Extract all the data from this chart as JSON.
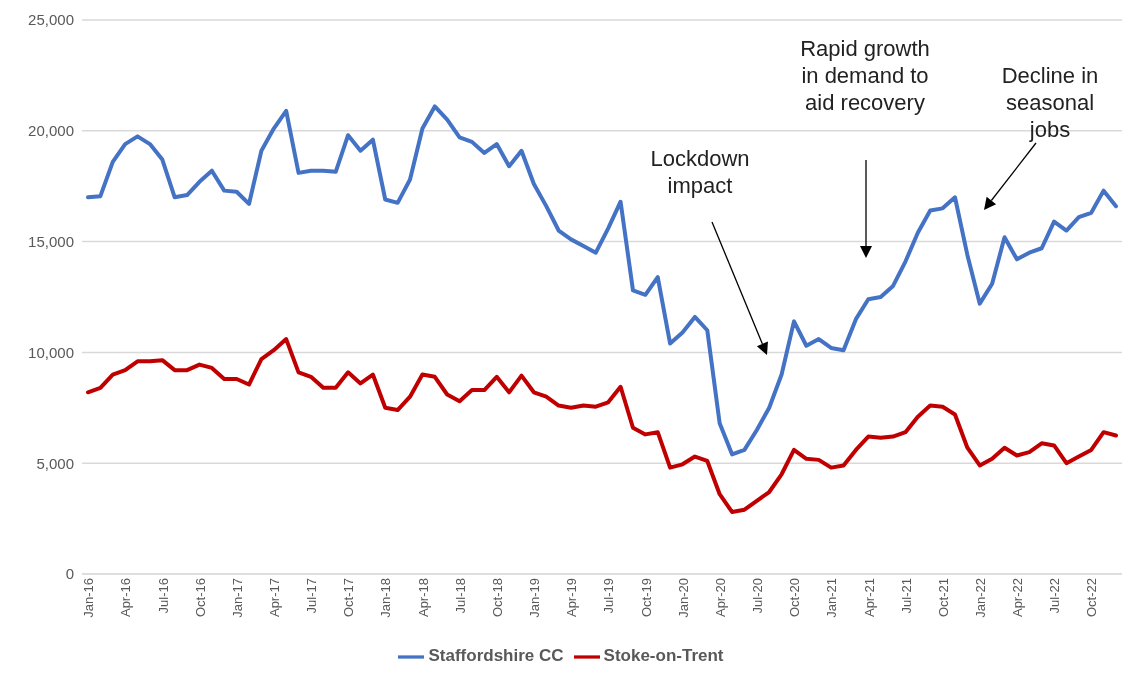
{
  "chart_data": {
    "type": "line",
    "categories": [
      "Jan-16",
      null,
      null,
      "Apr-16",
      null,
      null,
      "Jul-16",
      null,
      null,
      "Oct-16",
      null,
      null,
      "Jan-17",
      null,
      null,
      "Apr-17",
      null,
      null,
      "Jul-17",
      null,
      null,
      "Oct-17",
      null,
      null,
      "Jan-18",
      null,
      null,
      "Apr-18",
      null,
      null,
      "Jul-18",
      null,
      null,
      "Oct-18",
      null,
      null,
      "Jan-19",
      null,
      null,
      "Apr-19",
      null,
      null,
      "Jul-19",
      null,
      null,
      "Oct-19",
      null,
      null,
      "Jan-20",
      null,
      null,
      "Apr-20",
      null,
      null,
      "Jul-20",
      null,
      null,
      "Oct-20",
      null,
      null,
      "Jan-21",
      null,
      null,
      "Apr-21",
      null,
      null,
      "Jul-21",
      null,
      null,
      "Oct-21",
      null,
      null,
      "Jan-22",
      null,
      null,
      "Apr-22",
      null,
      null,
      "Jul-22",
      null,
      null,
      "Oct-22",
      null,
      null
    ],
    "series": [
      {
        "name": "Staffordshire CC",
        "color": "#4472c4",
        "values": [
          17000,
          17050,
          18600,
          19400,
          19750,
          19400,
          18700,
          17000,
          17100,
          17700,
          18200,
          17300,
          17250,
          16700,
          19100,
          20100,
          20900,
          18100,
          18200,
          18200,
          18150,
          19800,
          19100,
          19600,
          16900,
          16750,
          17800,
          20100,
          21100,
          20500,
          19700,
          19500,
          19000,
          19400,
          18400,
          19100,
          17600,
          16600,
          15500,
          15100,
          14800,
          14500,
          15600,
          16800,
          12800,
          12600,
          13400,
          10400,
          10900,
          11600,
          11000,
          6800,
          5400,
          5600,
          6500,
          7500,
          9000,
          11400,
          10300,
          10600,
          10200,
          10100,
          11500,
          12400,
          12500,
          13000,
          14100,
          15400,
          16400,
          16500,
          17000,
          14400,
          12200,
          13100,
          15200,
          14200,
          14500,
          14700,
          15900,
          15500,
          16100,
          16300,
          17300,
          16600
        ]
      },
      {
        "name": "Stoke-on-Trent",
        "color": "#c00000",
        "values": [
          8200,
          8400,
          9000,
          9200,
          9600,
          9600,
          9650,
          9200,
          9200,
          9450,
          9300,
          8800,
          8800,
          8550,
          9700,
          10100,
          10600,
          9100,
          8900,
          8400,
          8400,
          9100,
          8600,
          9000,
          7500,
          7400,
          8000,
          9000,
          8900,
          8100,
          7800,
          8300,
          8300,
          8900,
          8200,
          8950,
          8200,
          8000,
          7600,
          7500,
          7600,
          7550,
          7750,
          8450,
          6600,
          6300,
          6400,
          4800,
          4950,
          5300,
          5100,
          3600,
          2800,
          2900,
          3300,
          3700,
          4500,
          5600,
          5200,
          5150,
          4800,
          4900,
          5600,
          6200,
          6150,
          6200,
          6400,
          7100,
          7600,
          7550,
          7200,
          5700,
          4900,
          5200,
          5700,
          5350,
          5500,
          5900,
          5800,
          5000,
          5300,
          5600,
          6400,
          6250
        ]
      }
    ],
    "ylim": [
      0,
      25000
    ],
    "yticks": [
      0,
      {
        "value": 5000,
        "label": "5,000"
      },
      {
        "value": 10000,
        "label": "10,000"
      },
      {
        "value": 15000,
        "label": "15,000"
      },
      {
        "value": 20000,
        "label": "20,000"
      },
      {
        "value": 25000,
        "label": "25,000"
      }
    ],
    "grid": "y",
    "legend": "bottom",
    "marker": "none",
    "line_style": "solid",
    "annotations": [
      "Lockdown\nimpact",
      "Rapid growth\nin demand to\naid recovery",
      "Decline in\nseasonal\njobs"
    ]
  }
}
